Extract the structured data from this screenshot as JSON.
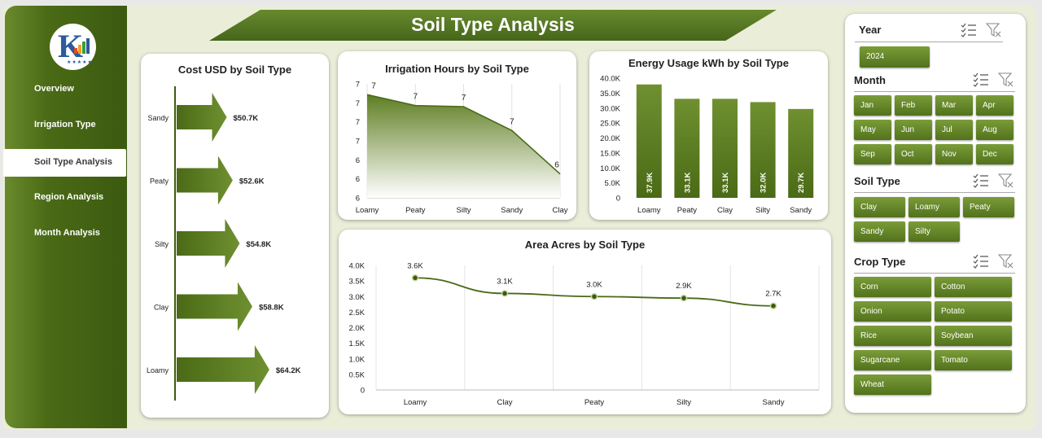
{
  "title": "Soil Type Analysis",
  "nav": {
    "items": [
      {
        "label": "Overview"
      },
      {
        "label": "Irrigation Type"
      },
      {
        "label": "Soil Type Analysis"
      },
      {
        "label": "Region Analysis"
      },
      {
        "label": "Month Analysis"
      }
    ],
    "active_index": 2
  },
  "colors": {
    "accent": "#4f6f1a",
    "dark": "#3c5a10",
    "chip": "#5f8224"
  },
  "charts": {
    "cost": {
      "type": "bar",
      "title": "Cost USD by Soil Type",
      "categories": [
        "Sandy",
        "Peaty",
        "Silty",
        "Clay",
        "Loamy"
      ],
      "values": [
        50.7,
        52.6,
        54.8,
        58.8,
        64.2
      ],
      "data_labels": [
        "$50.7K",
        "$52.6K",
        "$54.8K",
        "$58.8K",
        "$64.2K"
      ]
    },
    "irrigation": {
      "type": "area",
      "title": "Irrigation Hours by Soil Type",
      "categories": [
        "Loamy",
        "Peaty",
        "Silty",
        "Sandy",
        "Clay"
      ],
      "values": [
        6.95,
        6.85,
        6.84,
        6.62,
        6.22
      ],
      "data_labels": [
        "7",
        "7",
        "7",
        "7",
        "6"
      ],
      "y_tick_labels": [
        "7",
        "7",
        "7",
        "7",
        "6",
        "6",
        "6"
      ],
      "ylim": [
        6.0,
        7.05
      ]
    },
    "energy": {
      "type": "bar",
      "title": "Energy Usage kWh by Soil Type",
      "categories": [
        "Loamy",
        "Peaty",
        "Clay",
        "Silty",
        "Sandy"
      ],
      "values": [
        37.9,
        33.1,
        33.1,
        32.0,
        29.7
      ],
      "data_labels": [
        "37.9K",
        "33.1K",
        "33.1K",
        "32.0K",
        "29.7K"
      ],
      "y_tick_labels": [
        "0",
        "5.0K",
        "10.0K",
        "15.0K",
        "20.0K",
        "25.0K",
        "30.0K",
        "35.0K",
        "40.0K"
      ],
      "ylim": [
        0,
        40
      ]
    },
    "area": {
      "type": "line",
      "title": "Area Acres by Soil Type",
      "categories": [
        "Loamy",
        "Clay",
        "Peaty",
        "Silty",
        "Sandy"
      ],
      "values": [
        3.6,
        3.1,
        3.0,
        2.95,
        2.7
      ],
      "data_labels": [
        "3.6K",
        "3.1K",
        "3.0K",
        "2.9K",
        "2.7K"
      ],
      "y_tick_labels": [
        "0",
        "0.5K",
        "1.0K",
        "1.5K",
        "2.0K",
        "2.5K",
        "3.0K",
        "3.5K",
        "4.0K"
      ],
      "ylim": [
        0,
        4.0
      ]
    }
  },
  "slicers": {
    "year": {
      "title": "Year",
      "items": [
        "2024"
      ]
    },
    "month": {
      "title": "Month",
      "items": [
        "Jan",
        "Feb",
        "Mar",
        "Apr",
        "May",
        "Jun",
        "Jul",
        "Aug",
        "Sep",
        "Oct",
        "Nov",
        "Dec"
      ]
    },
    "soil": {
      "title": "Soil Type",
      "items": [
        "Clay",
        "Loamy",
        "Peaty",
        "Sandy",
        "Silty"
      ]
    },
    "crop": {
      "title": "Crop Type",
      "items": [
        "Corn",
        "Cotton",
        "Onion",
        "Potato",
        "Rice",
        "Soybean",
        "Sugarcane",
        "Tomato",
        "Wheat"
      ]
    }
  }
}
